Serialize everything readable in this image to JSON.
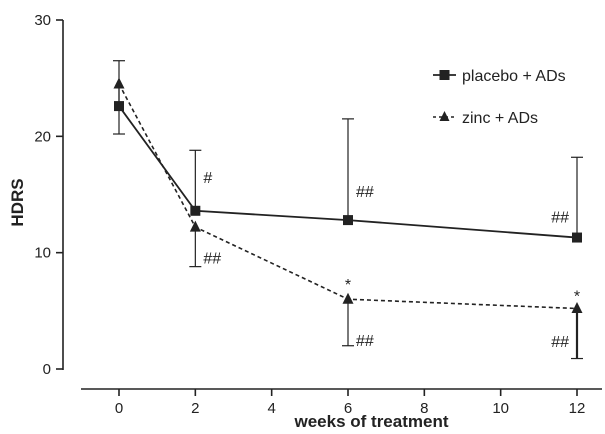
{
  "chart_data": {
    "type": "line",
    "xlabel": "weeks of treatment",
    "ylabel": "HDRS",
    "xlim": [
      -1.5,
      12.8
    ],
    "ylim": [
      0,
      30
    ],
    "xticks": [
      0,
      2,
      4,
      6,
      8,
      10,
      12
    ],
    "yticks": [
      0,
      10,
      20,
      30
    ],
    "grid": false,
    "legend_position": "top-right",
    "series": [
      {
        "name": "placebo + ADs",
        "marker": "square",
        "line": "solid",
        "color": "#222222",
        "x": [
          0,
          2,
          6,
          12
        ],
        "y": [
          22.6,
          13.6,
          12.8,
          11.3
        ],
        "error_upper": [
          26.5,
          18.8,
          21.5,
          18.2
        ]
      },
      {
        "name": "zinc + ADs",
        "marker": "triangle",
        "line": "dotted",
        "color": "#222222",
        "x": [
          0,
          2,
          6,
          12
        ],
        "y": [
          24.5,
          12.2,
          6.0,
          5.2
        ],
        "error_lower": [
          20.2,
          8.8,
          2.0,
          0.9
        ]
      }
    ],
    "annotations": [
      {
        "text": "#",
        "x": 2,
        "y": 16.5
      },
      {
        "text": "##",
        "x": 2,
        "y": 9.6
      },
      {
        "text": "##",
        "x": 6,
        "y": 15.3
      },
      {
        "text": "*",
        "x": 6,
        "y": 7.3
      },
      {
        "text": "##",
        "x": 6,
        "y": 2.5
      },
      {
        "text": "##",
        "x": 12,
        "y": 13.1
      },
      {
        "text": "*",
        "x": 12,
        "y": 6.3
      },
      {
        "text": "##",
        "x": 12,
        "y": 2.4
      }
    ]
  }
}
